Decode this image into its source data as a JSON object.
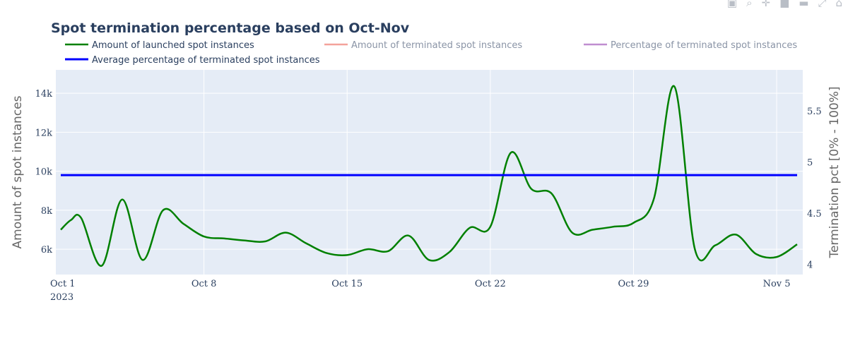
{
  "toolbar": {
    "icons": [
      "camera-icon",
      "zoom-icon",
      "pan-icon",
      "zoom-in-icon",
      "zoom-out-icon",
      "autoscale-icon",
      "home-icon"
    ]
  },
  "chart_data": {
    "type": "line",
    "title": "Spot termination percentage based on Oct-Nov",
    "xlabel": "",
    "ylabel": "Amount of spot instances",
    "y2label": "Termination pct [0% - 100%]",
    "x_ticks": [
      "Oct 1",
      "Oct 8",
      "Oct 15",
      "Oct 22",
      "Oct 29",
      "Nov 5"
    ],
    "x_tick_sub": "2023",
    "y_ticks": [
      "6k",
      "8k",
      "10k",
      "12k",
      "14k"
    ],
    "y2_ticks": [
      "4",
      "4.5",
      "5",
      "5.5"
    ],
    "x_range": [
      "2023-10-01",
      "2023-11-06"
    ],
    "ylim": [
      4700,
      15200
    ],
    "y2lim": [
      3.9,
      5.9
    ],
    "grid": true,
    "legend_position": "top",
    "background_color": "#e5ecf6",
    "series": [
      {
        "name": "Amount of launched spot instances",
        "color": "#008000",
        "axis": "y",
        "smooth": true,
        "x": [
          "2023-10-01",
          "2023-10-01T12:00",
          "2023-10-02",
          "2023-10-03",
          "2023-10-04",
          "2023-10-05",
          "2023-10-06",
          "2023-10-07",
          "2023-10-08",
          "2023-10-09",
          "2023-10-10",
          "2023-10-11",
          "2023-10-12",
          "2023-10-13",
          "2023-10-14",
          "2023-10-15",
          "2023-10-16",
          "2023-10-17",
          "2023-10-18",
          "2023-10-19",
          "2023-10-20",
          "2023-10-21",
          "2023-10-22",
          "2023-10-23",
          "2023-10-24",
          "2023-10-25",
          "2023-10-26",
          "2023-10-27",
          "2023-10-28",
          "2023-10-29",
          "2023-10-30",
          "2023-10-31",
          "2023-11-01",
          "2023-11-02",
          "2023-11-03",
          "2023-11-04",
          "2023-11-05",
          "2023-11-06"
        ],
        "values": [
          7000,
          7500,
          7600,
          5150,
          8550,
          5450,
          8000,
          7300,
          6650,
          6550,
          6450,
          6400,
          6850,
          6300,
          5800,
          5700,
          6000,
          5900,
          6700,
          5450,
          5850,
          7100,
          7150,
          10950,
          9100,
          8850,
          6850,
          7000,
          7150,
          7350,
          8600,
          14350,
          6000,
          6200,
          6750,
          5750,
          5600,
          6250
        ]
      },
      {
        "name": "Amount of terminated spot instances",
        "color": "#f4a29b",
        "axis": "y",
        "values": []
      },
      {
        "name": "Percentage of terminated spot instances",
        "color": "#c08dd0",
        "axis": "y2",
        "values": []
      },
      {
        "name": "Average percentage of terminated spot instances",
        "color": "#0000ff",
        "axis": "y",
        "x": [
          "2023-10-01",
          "2023-11-06"
        ],
        "values": [
          9800,
          9800
        ]
      }
    ]
  }
}
